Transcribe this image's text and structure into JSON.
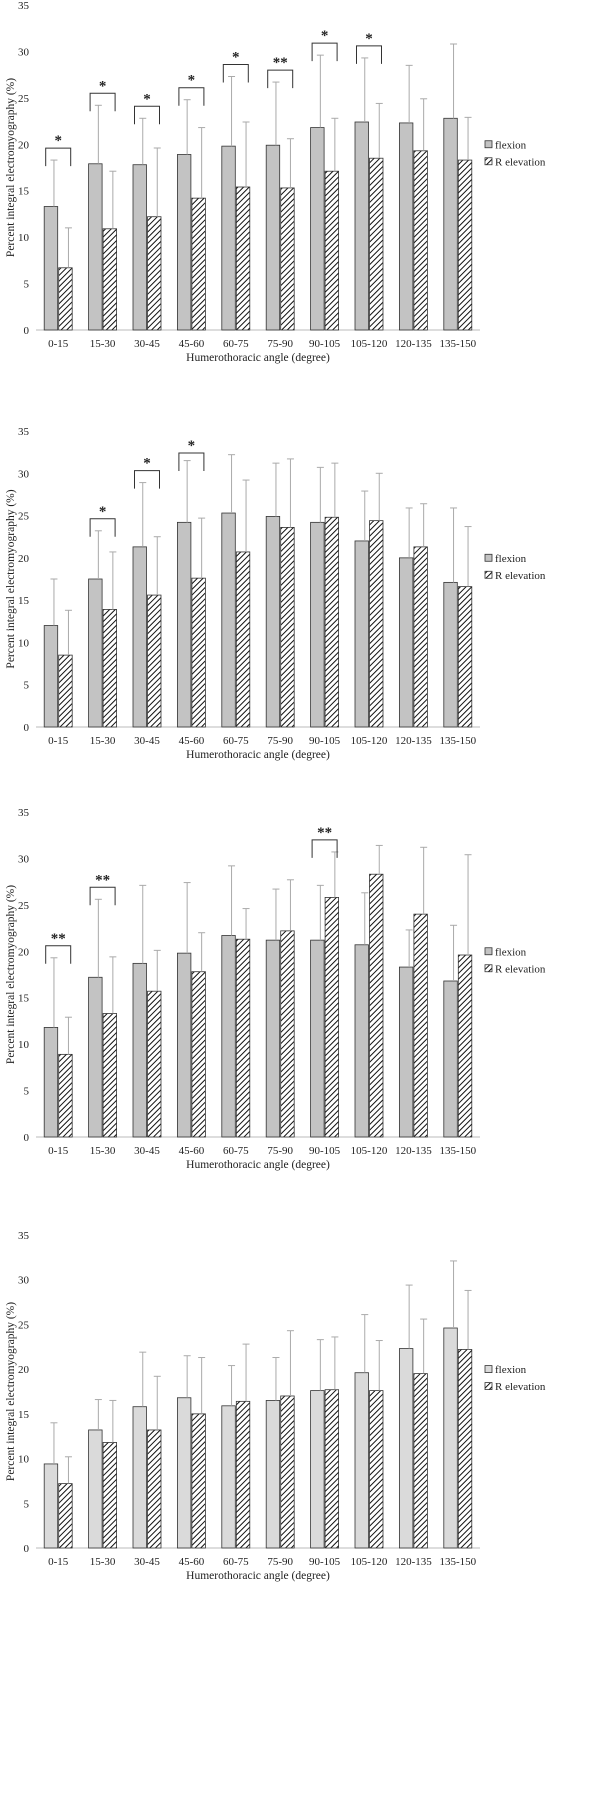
{
  "chart_data": [
    {
      "type": "bar",
      "xlabel": "Humerothoracic angle (degree)",
      "ylabel": "Percent integral electromyography (%)",
      "ylim": [
        0,
        35
      ],
      "yticks": [
        0,
        5,
        10,
        15,
        20,
        25,
        30,
        35
      ],
      "categories": [
        "0-15",
        "15-30",
        "30-45",
        "45-60",
        "60-75",
        "75-90",
        "90-105",
        "105-120",
        "120-135",
        "135-150"
      ],
      "legend_position": "right",
      "grid": false,
      "series": [
        {
          "name": "flexion",
          "fill": "solid-gray",
          "values": [
            13.3,
            17.9,
            17.8,
            18.9,
            19.8,
            19.9,
            21.8,
            22.4,
            22.3,
            22.8
          ],
          "error": [
            5.0,
            6.3,
            5.0,
            5.9,
            7.5,
            6.8,
            7.8,
            6.9,
            6.2,
            8.0
          ]
        },
        {
          "name": "R elevation",
          "fill": "hatched",
          "values": [
            6.7,
            10.9,
            12.2,
            14.2,
            15.4,
            15.3,
            17.1,
            18.5,
            19.3,
            18.3
          ],
          "error": [
            4.3,
            6.2,
            7.4,
            7.6,
            7.0,
            5.3,
            5.7,
            5.9,
            5.6,
            4.6
          ]
        }
      ],
      "significance": [
        {
          "category": "0-15",
          "label": "*"
        },
        {
          "category": "15-30",
          "label": "*"
        },
        {
          "category": "30-45",
          "label": "*"
        },
        {
          "category": "45-60",
          "label": "*"
        },
        {
          "category": "60-75",
          "label": "*"
        },
        {
          "category": "75-90",
          "label": "**"
        },
        {
          "category": "90-105",
          "label": "*"
        },
        {
          "category": "105-120",
          "label": "*"
        }
      ]
    },
    {
      "type": "bar",
      "xlabel": "Humerothoracic angle (degree)",
      "ylabel": "Percent integral electromyography (%)",
      "ylim": [
        0,
        35
      ],
      "yticks": [
        0,
        5,
        10,
        15,
        20,
        25,
        30,
        35
      ],
      "categories": [
        "0-15",
        "15-30",
        "30-45",
        "45-60",
        "60-75",
        "75-90",
        "90-105",
        "105-120",
        "120-135",
        "135-150"
      ],
      "legend_position": "right",
      "grid": false,
      "series": [
        {
          "name": "flexion",
          "fill": "solid-gray",
          "values": [
            12.0,
            17.5,
            21.3,
            24.2,
            25.3,
            24.9,
            24.2,
            22.0,
            20.0,
            17.1
          ],
          "error": [
            5.5,
            5.7,
            7.6,
            7.3,
            6.9,
            6.3,
            6.5,
            5.9,
            5.9,
            8.8
          ]
        },
        {
          "name": "R elevation",
          "fill": "hatched",
          "values": [
            8.5,
            13.9,
            15.6,
            17.6,
            20.7,
            23.6,
            24.8,
            24.4,
            21.3,
            16.6
          ],
          "error": [
            5.3,
            6.8,
            6.9,
            7.1,
            8.5,
            8.1,
            6.4,
            5.6,
            5.1,
            7.1
          ]
        }
      ],
      "significance": [
        {
          "category": "15-30",
          "label": "*"
        },
        {
          "category": "30-45",
          "label": "*"
        },
        {
          "category": "45-60",
          "label": "*"
        }
      ]
    },
    {
      "type": "bar",
      "xlabel": "Humerothoracic angle (degree)",
      "ylabel": "Percent integral electromyography (%)",
      "ylim": [
        0,
        35
      ],
      "yticks": [
        0,
        5,
        10,
        15,
        20,
        25,
        30,
        35
      ],
      "categories": [
        "0-15",
        "15-30",
        "30-45",
        "45-60",
        "60-75",
        "75-90",
        "90-105",
        "105-120",
        "120-135",
        "135-150"
      ],
      "legend_position": "right",
      "grid": false,
      "series": [
        {
          "name": "flexion",
          "fill": "solid-gray",
          "values": [
            11.8,
            17.2,
            18.7,
            19.8,
            21.7,
            21.2,
            21.2,
            20.7,
            18.3,
            16.8
          ],
          "error": [
            7.5,
            8.4,
            8.4,
            7.6,
            7.5,
            5.5,
            5.9,
            5.6,
            4.0,
            6.0
          ]
        },
        {
          "name": "R elevation",
          "fill": "hatched",
          "values": [
            8.9,
            13.3,
            15.7,
            17.8,
            21.3,
            22.2,
            25.8,
            28.3,
            24.0,
            19.6
          ],
          "error": [
            4.0,
            6.1,
            4.4,
            4.2,
            3.3,
            5.5,
            4.9,
            3.1,
            7.2,
            10.8
          ]
        }
      ],
      "significance": [
        {
          "category": "0-15",
          "label": "**"
        },
        {
          "category": "15-30",
          "label": "**"
        },
        {
          "category": "90-105",
          "label": "**"
        }
      ]
    },
    {
      "type": "bar",
      "xlabel": "Humerothoracic angle (degree)",
      "ylabel": "Percent integral electromyography (%)",
      "ylim": [
        0,
        35
      ],
      "yticks": [
        0,
        5,
        10,
        15,
        20,
        25,
        30,
        35
      ],
      "categories": [
        "0-15",
        "15-30",
        "30-45",
        "45-60",
        "60-75",
        "75-90",
        "90-105",
        "105-120",
        "120-135",
        "135-150"
      ],
      "legend_position": "right",
      "grid": false,
      "series": [
        {
          "name": "flexion",
          "fill": "light-gray",
          "values": [
            9.4,
            13.2,
            15.8,
            16.8,
            15.9,
            16.5,
            17.6,
            19.6,
            22.3,
            24.6
          ],
          "error": [
            4.6,
            3.4,
            6.1,
            4.7,
            4.5,
            4.8,
            5.7,
            6.5,
            7.1,
            7.5
          ]
        },
        {
          "name": "R elevation",
          "fill": "hatched",
          "values": [
            7.2,
            11.8,
            13.2,
            15.0,
            16.4,
            17.0,
            17.7,
            17.6,
            19.5,
            22.2
          ],
          "error": [
            3.0,
            4.7,
            6.0,
            6.3,
            6.4,
            7.3,
            5.9,
            5.6,
            6.1,
            6.6
          ]
        }
      ],
      "significance": []
    }
  ]
}
